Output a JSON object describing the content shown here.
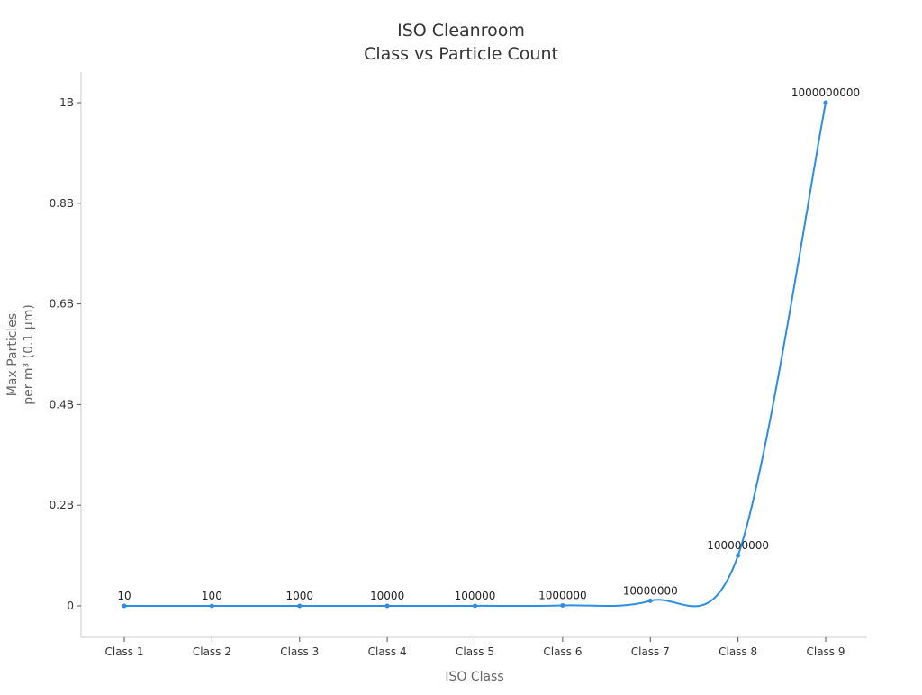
{
  "chart_data": {
    "type": "line",
    "title": [
      "ISO Cleanroom",
      "Class vs Particle Count"
    ],
    "xlabel": "ISO Class",
    "ylabel": [
      "Max Particles",
      "per m³ (0.1 µm)"
    ],
    "categories": [
      "Class 1",
      "Class 2",
      "Class 3",
      "Class 4",
      "Class 5",
      "Class 6",
      "Class 7",
      "Class 8",
      "Class 9"
    ],
    "values": [
      10,
      100,
      1000,
      10000,
      100000,
      1000000,
      10000000,
      100000000,
      1000000000
    ],
    "data_labels": [
      "10",
      "100",
      "1000",
      "10000",
      "100000",
      "1000000",
      "10000000",
      "100000000",
      "1000000000"
    ],
    "yticks": [
      0,
      200000000,
      400000000,
      600000000,
      800000000,
      1000000000
    ],
    "ytick_labels": [
      "0",
      "0.2B",
      "0.4B",
      "0.6B",
      "0.8B",
      "1B"
    ],
    "ylim": [
      -60000000,
      1060000000
    ],
    "grid": false,
    "color": "#2b8de6"
  }
}
